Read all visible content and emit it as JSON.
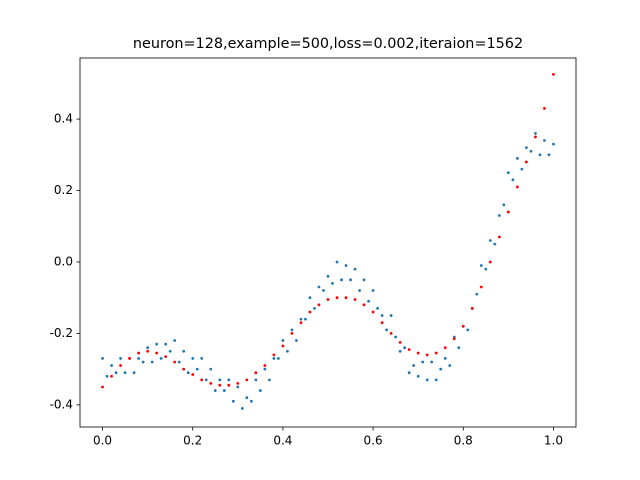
{
  "chart_data": {
    "type": "scatter",
    "title": "neuron=128,example=500,loss=0.002,iteraion=1562",
    "xlim": [
      -0.05,
      1.05
    ],
    "ylim": [
      -0.462,
      0.571
    ],
    "xticks": [
      {
        "value": 0,
        "label": "0.0"
      },
      0.2,
      0.4,
      0.6,
      0.8,
      {
        "value": 1,
        "label": "1.0"
      }
    ],
    "yticks": [
      -0.4,
      -0.2,
      {
        "value": 0,
        "label": "0.0"
      },
      0.2,
      0.4
    ],
    "grid": false,
    "series": [
      {
        "color": "#1f77b4",
        "x": [
          0,
          0.01,
          0.02,
          0.03,
          0.04,
          0.05,
          0.06,
          0.07,
          0.08,
          0.09,
          0.1,
          0.11,
          0.12,
          0.13,
          0.14,
          0.15,
          0.16,
          0.17,
          0.18,
          0.19,
          0.2,
          0.21,
          0.22,
          0.23,
          0.24,
          0.25,
          0.26,
          0.27,
          0.28,
          0.29,
          0.3,
          0.31,
          0.32,
          0.33,
          0.34,
          0.35,
          0.36,
          0.37,
          0.38,
          0.39,
          0.4,
          0.41,
          0.42,
          0.43,
          0.44,
          0.45,
          0.46,
          0.47,
          0.48,
          0.49,
          0.5,
          0.51,
          0.52,
          0.53,
          0.54,
          0.55,
          0.56,
          0.57,
          0.58,
          0.59,
          0.6,
          0.61,
          0.62,
          0.63,
          0.64,
          0.65,
          0.66,
          0.67,
          0.68,
          0.69,
          0.7,
          0.71,
          0.72,
          0.73,
          0.74,
          0.75,
          0.76,
          0.77,
          0.78,
          0.79,
          0.8,
          0.81,
          0.82,
          0.83,
          0.84,
          0.85,
          0.86,
          0.87,
          0.88,
          0.89,
          0.9,
          0.91,
          0.92,
          0.93,
          0.94,
          0.95,
          0.96,
          0.97,
          0.98,
          0.99,
          1
        ],
        "values": [
          -0.27,
          -0.32,
          -0.29,
          -0.31,
          -0.27,
          -0.31,
          -0.27,
          -0.31,
          -0.27,
          -0.28,
          -0.24,
          -0.28,
          -0.23,
          -0.27,
          -0.23,
          -0.25,
          -0.22,
          -0.28,
          -0.25,
          -0.31,
          -0.27,
          -0.3,
          -0.27,
          -0.33,
          -0.3,
          -0.36,
          -0.33,
          -0.36,
          -0.33,
          -0.39,
          -0.35,
          -0.41,
          -0.38,
          -0.39,
          -0.33,
          -0.36,
          -0.3,
          -0.33,
          -0.27,
          -0.27,
          -0.22,
          -0.25,
          -0.19,
          -0.22,
          -0.16,
          -0.16,
          -0.1,
          -0.13,
          -0.07,
          -0.08,
          -0.04,
          -0.06,
          0.0,
          -0.05,
          -0.01,
          -0.05,
          -0.02,
          -0.08,
          -0.05,
          -0.11,
          -0.08,
          -0.13,
          -0.15,
          -0.19,
          -0.15,
          -0.21,
          -0.25,
          -0.24,
          -0.31,
          -0.29,
          -0.32,
          -0.28,
          -0.33,
          -0.28,
          -0.33,
          -0.3,
          -0.27,
          -0.29,
          -0.21,
          -0.24,
          -0.18,
          -0.19,
          -0.13,
          -0.09,
          -0.01,
          -0.02,
          0.06,
          0.05,
          0.13,
          0.16,
          0.25,
          0.23,
          0.29,
          0.26,
          0.32,
          0.31,
          0.36,
          0.3,
          0.34,
          0.3,
          0.33
        ]
      },
      {
        "color": "#ff0000",
        "x": [
          0,
          0.02,
          0.04,
          0.06,
          0.08,
          0.1,
          0.12,
          0.14,
          0.16,
          0.18,
          0.2,
          0.22,
          0.24,
          0.26,
          0.28,
          0.3,
          0.32,
          0.34,
          0.36,
          0.38,
          0.4,
          0.42,
          0.44,
          0.46,
          0.48,
          0.5,
          0.52,
          0.54,
          0.56,
          0.58,
          0.6,
          0.62,
          0.64,
          0.66,
          0.68,
          0.7,
          0.72,
          0.74,
          0.76,
          0.78,
          0.8,
          0.82,
          0.84,
          0.86,
          0.88,
          0.9,
          0.92,
          0.94,
          0.96,
          0.98,
          1
        ],
        "values": [
          -0.35,
          -0.32,
          -0.29,
          -0.27,
          -0.255,
          -0.25,
          -0.255,
          -0.265,
          -0.28,
          -0.3,
          -0.315,
          -0.33,
          -0.34,
          -0.345,
          -0.345,
          -0.34,
          -0.33,
          -0.31,
          -0.29,
          -0.26,
          -0.235,
          -0.2,
          -0.17,
          -0.14,
          -0.12,
          -0.105,
          -0.1,
          -0.1,
          -0.105,
          -0.12,
          -0.14,
          -0.17,
          -0.2,
          -0.225,
          -0.245,
          -0.255,
          -0.26,
          -0.255,
          -0.24,
          -0.215,
          -0.18,
          -0.13,
          -0.07,
          0.0,
          0.07,
          0.14,
          0.21,
          0.28,
          0.35,
          0.43,
          0.525
        ]
      }
    ]
  }
}
